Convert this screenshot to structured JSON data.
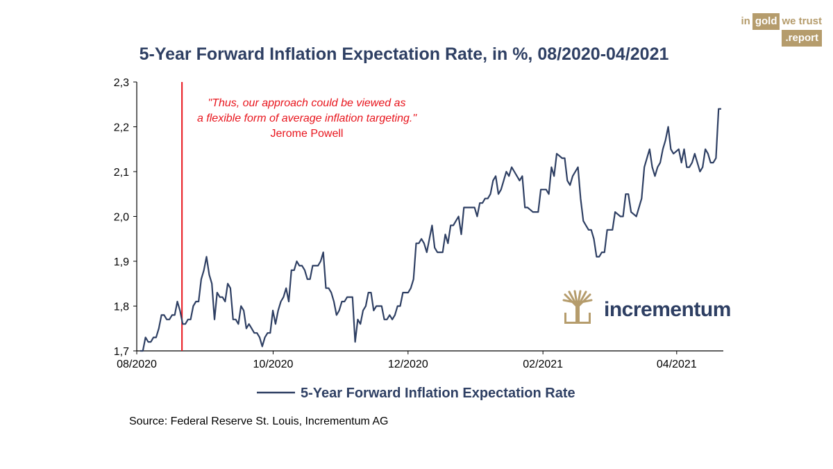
{
  "chart_data": {
    "type": "line",
    "title": "5-Year Forward Inflation Expectation Rate, in %, 08/2020-04/2021",
    "xlabel": "",
    "ylabel": "",
    "ylim": [
      1.7,
      2.3
    ],
    "yticks": [
      "1,7",
      "1,8",
      "1,9",
      "2,0",
      "2,1",
      "2,2",
      "2,3"
    ],
    "xticks": [
      "08/2020",
      "10/2020",
      "12/2020",
      "02/2021",
      "04/2021"
    ],
    "series": [
      {
        "name": "5-Year Forward Inflation Expectation Rate",
        "color": "#2e3f63",
        "values": [
          1.7,
          1.7,
          1.73,
          1.72,
          1.72,
          1.73,
          1.73,
          1.75,
          1.78,
          1.78,
          1.77,
          1.77,
          1.78,
          1.78,
          1.81,
          1.79,
          1.76,
          1.76,
          1.77,
          1.77,
          1.8,
          1.81,
          1.81,
          1.86,
          1.88,
          1.91,
          1.87,
          1.85,
          1.77,
          1.83,
          1.82,
          1.82,
          1.81,
          1.85,
          1.84,
          1.77,
          1.77,
          1.76,
          1.8,
          1.79,
          1.75,
          1.76,
          1.75,
          1.74,
          1.74,
          1.73,
          1.71,
          1.73,
          1.74,
          1.74,
          1.79,
          1.76,
          1.79,
          1.81,
          1.82,
          1.84,
          1.81,
          1.88,
          1.88,
          1.9,
          1.89,
          1.89,
          1.88,
          1.86,
          1.86,
          1.89,
          1.89,
          1.89,
          1.9,
          1.92,
          1.84,
          1.84,
          1.83,
          1.81,
          1.78,
          1.79,
          1.81,
          1.81,
          1.82,
          1.82,
          1.82,
          1.72,
          1.77,
          1.76,
          1.79,
          1.8,
          1.83,
          1.83,
          1.79,
          1.8,
          1.8,
          1.8,
          1.77,
          1.77,
          1.78,
          1.77,
          1.78,
          1.8,
          1.8,
          1.83,
          1.83,
          1.83,
          1.84,
          1.86,
          1.94,
          1.94,
          1.95,
          1.94,
          1.92,
          1.95,
          1.98,
          1.93,
          1.92,
          1.92,
          1.92,
          1.96,
          1.94,
          1.98,
          1.98,
          1.99,
          2.0,
          1.96,
          2.02,
          2.02,
          2.02,
          2.02,
          2.02,
          2.0,
          2.03,
          2.03,
          2.04,
          2.04,
          2.05,
          2.08,
          2.09,
          2.05,
          2.06,
          2.08,
          2.1,
          2.09,
          2.11,
          2.1,
          2.09,
          2.08,
          2.09,
          2.02,
          2.02,
          2.015,
          2.01,
          2.01,
          2.01,
          2.06,
          2.06,
          2.06,
          2.05,
          2.11,
          2.09,
          2.14,
          2.135,
          2.13,
          2.13,
          2.08,
          2.07,
          2.09,
          2.1,
          2.11,
          2.04,
          1.99,
          1.98,
          1.97,
          1.97,
          1.95,
          1.91,
          1.91,
          1.92,
          1.92,
          1.97,
          1.97,
          1.97,
          2.01,
          2.005,
          2.0,
          2.0,
          2.05,
          2.05,
          2.01,
          2.005,
          2.0,
          2.02,
          2.04,
          2.11,
          2.13,
          2.15,
          2.11,
          2.09,
          2.11,
          2.12,
          2.15,
          2.17,
          2.2,
          2.15,
          2.14,
          2.145,
          2.15,
          2.12,
          2.15,
          2.11,
          2.11,
          2.12,
          2.14,
          2.12,
          2.1,
          2.11,
          2.15,
          2.14,
          2.12,
          2.12,
          2.13,
          2.24,
          2.24
        ]
      }
    ],
    "annotations": [
      {
        "type": "vline",
        "at_index": 16,
        "color": "#e8141c",
        "quote_line1": "\"Thus, our approach could be viewed as",
        "quote_line2": "a flexible form of average inflation targeting.\"",
        "author": "Jerome Powell"
      }
    ],
    "legend": {
      "position": "bottom-center",
      "label": "5-Year Forward Inflation Expectation Rate"
    },
    "source": "Source: Federal Reserve St. Louis, Incrementum AG"
  },
  "branding": {
    "in": "in",
    "gold": "gold",
    "we_trust": "we trust",
    "report": ".report",
    "logo_text": "incrementum",
    "gold_color": "#b59c6c"
  }
}
